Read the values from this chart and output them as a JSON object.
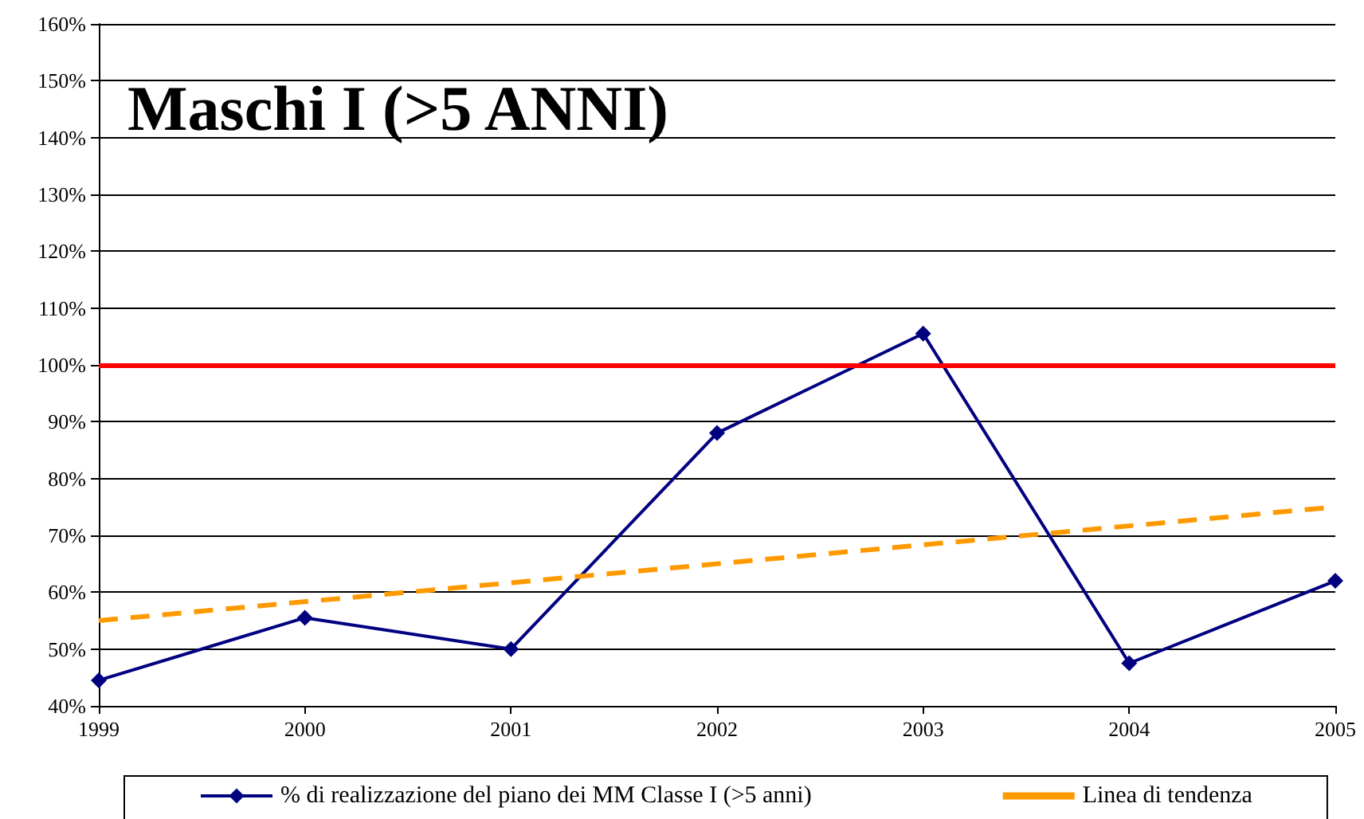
{
  "chart_data": {
    "type": "line",
    "title": "Maschi I (>5 ANNI)",
    "x": [
      1999,
      2000,
      2001,
      2002,
      2003,
      2004,
      2005
    ],
    "series": [
      {
        "name": "% di realizzazione del piano dei MM Classe I (>5 anni)",
        "color": "#000080",
        "values": [
          44.5,
          55.5,
          50,
          88,
          105.5,
          47.5,
          62
        ],
        "marker": "diamond",
        "line_style": "solid"
      },
      {
        "name": "Linea di tendenza",
        "type": "line",
        "color": "#ff9900",
        "x": [
          1999,
          2005
        ],
        "values": [
          55,
          75
        ],
        "marker": "none",
        "line_style": "dashed"
      }
    ],
    "xlim": [
      1999,
      2005
    ],
    "xticks": [
      1999,
      2000,
      2001,
      2002,
      2003,
      2004,
      2005
    ],
    "ylim": [
      40,
      160
    ],
    "yticks": [
      {
        "value": 40,
        "label": "40%"
      },
      {
        "value": 50,
        "label": "50%"
      },
      {
        "value": 60,
        "label": "60%"
      },
      {
        "value": 70,
        "label": "70%"
      },
      {
        "value": 80,
        "label": "80%"
      },
      {
        "value": 90,
        "label": "90%"
      },
      {
        "value": 100,
        "label": "100%"
      },
      {
        "value": 110,
        "label": "110%"
      },
      {
        "value": 120,
        "label": "120%"
      },
      {
        "value": 130,
        "label": "130%"
      },
      {
        "value": 140,
        "label": "140%"
      },
      {
        "value": 150,
        "label": "150%"
      },
      {
        "value": 160,
        "label": "160%"
      }
    ],
    "ref_lines": [
      {
        "axis": "y",
        "value": 100,
        "color": "#ff0000",
        "line_style": "solid"
      }
    ],
    "grid": "y",
    "legend": "bottom"
  }
}
